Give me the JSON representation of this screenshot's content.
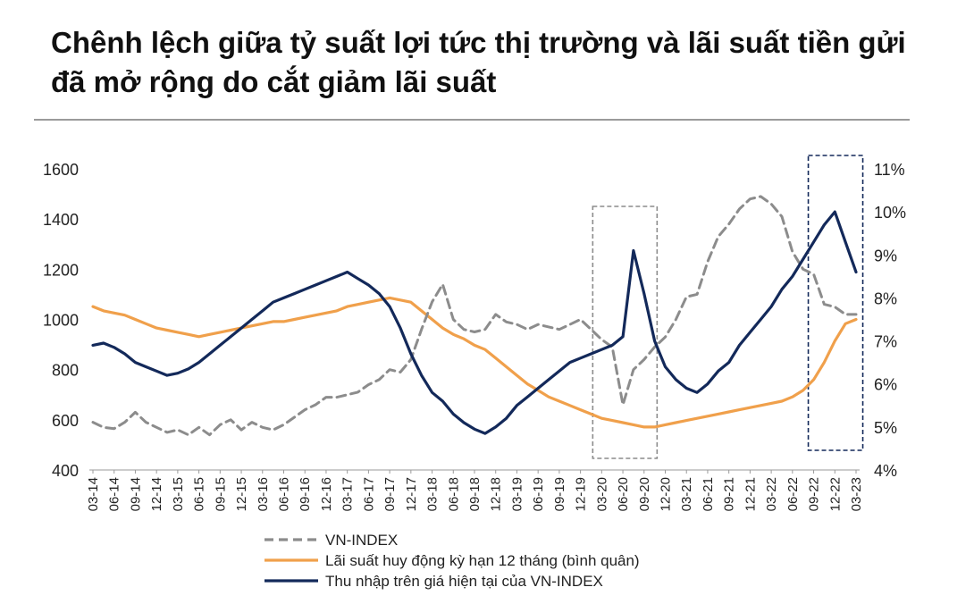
{
  "chart_data": {
    "type": "line",
    "title": "Chênh lệch giữa tỷ suất lợi tức thị trường và lãi suất tiền gửi đã mở rộng do cắt giảm lãi suất",
    "y_left": {
      "min": 400,
      "max": 1600,
      "ticks": [
        "400",
        "600",
        "800",
        "1000",
        "1200",
        "1400",
        "1600"
      ]
    },
    "y_right": {
      "min": 4,
      "max": 11,
      "ticks": [
        "4%",
        "5%",
        "6%",
        "7%",
        "8%",
        "9%",
        "10%",
        "11%"
      ]
    },
    "x_tick_labels": [
      "03-14",
      "06-14",
      "09-14",
      "12-14",
      "03-15",
      "06-15",
      "09-15",
      "12-15",
      "03-16",
      "06-16",
      "09-16",
      "12-16",
      "03-17",
      "06-17",
      "09-17",
      "12-17",
      "03-18",
      "06-18",
      "09-18",
      "12-18",
      "03-19",
      "06-19",
      "09-19",
      "12-19",
      "03-20",
      "06-20",
      "09-20",
      "12-20",
      "03-21",
      "06-21",
      "09-21",
      "12-21",
      "03-22",
      "06-22",
      "09-22",
      "12-22",
      "03-23"
    ],
    "series": [
      {
        "name": "VN-INDEX",
        "axis": "left",
        "color": "#8c8c8c",
        "dash": "dashed",
        "values": [
          590,
          570,
          565,
          590,
          630,
          590,
          570,
          550,
          560,
          540,
          570,
          540,
          580,
          600,
          560,
          590,
          570,
          560,
          580,
          610,
          640,
          660,
          690,
          690,
          700,
          710,
          740,
          760,
          800,
          790,
          840,
          960,
          1070,
          1140,
          1000,
          960,
          950,
          960,
          1020,
          990,
          980,
          960,
          980,
          970,
          960,
          980,
          1000,
          960,
          920,
          890,
          660,
          800,
          840,
          890,
          930,
          1000,
          1090,
          1100,
          1230,
          1330,
          1380,
          1440,
          1480,
          1490,
          1460,
          1410,
          1270,
          1200,
          1180,
          1060,
          1050,
          1020,
          1020
        ]
      },
      {
        "name": "Lãi suất huy động kỳ hạn 12 tháng (bình quân)",
        "axis": "right",
        "color": "#f0a04b",
        "dash": "solid",
        "values": [
          7.8,
          7.7,
          7.65,
          7.6,
          7.5,
          7.4,
          7.3,
          7.25,
          7.2,
          7.15,
          7.1,
          7.15,
          7.2,
          7.25,
          7.3,
          7.35,
          7.4,
          7.45,
          7.45,
          7.5,
          7.55,
          7.6,
          7.65,
          7.7,
          7.8,
          7.85,
          7.9,
          7.95,
          8.0,
          7.95,
          7.9,
          7.7,
          7.5,
          7.3,
          7.15,
          7.05,
          6.9,
          6.8,
          6.6,
          6.4,
          6.2,
          6.0,
          5.85,
          5.7,
          5.6,
          5.5,
          5.4,
          5.3,
          5.2,
          5.15,
          5.1,
          5.05,
          5.0,
          5.0,
          5.05,
          5.1,
          5.15,
          5.2,
          5.25,
          5.3,
          5.35,
          5.4,
          5.45,
          5.5,
          5.55,
          5.6,
          5.7,
          5.85,
          6.1,
          6.5,
          7.0,
          7.4,
          7.5
        ]
      },
      {
        "name": "Thu nhập trên giá hiện tại của VN-INDEX",
        "axis": "right",
        "color": "#13295a",
        "dash": "solid",
        "values": [
          6.9,
          6.95,
          6.85,
          6.7,
          6.5,
          6.4,
          6.3,
          6.2,
          6.25,
          6.35,
          6.5,
          6.7,
          6.9,
          7.1,
          7.3,
          7.5,
          7.7,
          7.9,
          8.0,
          8.1,
          8.2,
          8.3,
          8.4,
          8.5,
          8.6,
          8.45,
          8.3,
          8.1,
          7.8,
          7.3,
          6.7,
          6.2,
          5.8,
          5.6,
          5.3,
          5.1,
          4.95,
          4.85,
          5.0,
          5.2,
          5.5,
          5.7,
          5.9,
          6.1,
          6.3,
          6.5,
          6.6,
          6.7,
          6.8,
          6.9,
          7.1,
          9.1,
          8.1,
          7.0,
          6.4,
          6.1,
          5.9,
          5.8,
          6.0,
          6.3,
          6.5,
          6.9,
          7.2,
          7.5,
          7.8,
          8.2,
          8.5,
          8.9,
          9.3,
          9.7,
          10.0,
          9.3,
          8.6
        ]
      }
    ],
    "legend": {
      "placement": "bottom-center",
      "entries": [
        "VN-INDEX",
        "Lãi suất huy động kỳ hạn 12 tháng (bình quân)",
        "Thu nhập trên giá hiện tại của VN-INDEX"
      ]
    },
    "highlight_boxes": [
      {
        "start_label": "03-20",
        "style": "dashed-gray"
      },
      {
        "start_label": "09-22",
        "style": "dashed-navy"
      }
    ]
  }
}
